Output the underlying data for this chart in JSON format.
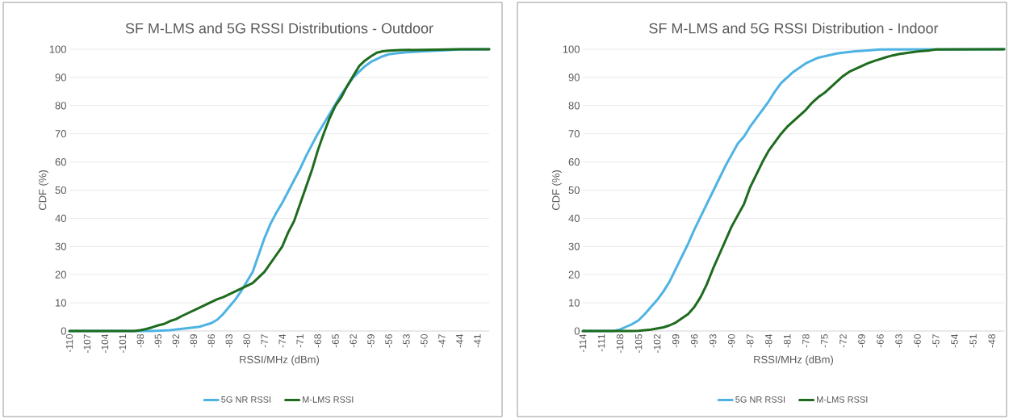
{
  "chart_data": [
    {
      "type": "line",
      "title": "SF M-LMS and 5G RSSI Distributions - Outdoor",
      "xlabel": "RSSI/MHz (dBm)",
      "ylabel": "CDF (%)",
      "xlim": [
        -110,
        -39
      ],
      "xticks": [
        -110,
        -107,
        -104,
        -101,
        -98,
        -95,
        -92,
        -89,
        -86,
        -83,
        -80,
        -77,
        -74,
        -71,
        -68,
        -65,
        -62,
        -59,
        -56,
        -53,
        -50,
        -47,
        -44,
        -41
      ],
      "ylim": [
        0,
        100
      ],
      "yticks": [
        0,
        10,
        20,
        30,
        40,
        50,
        60,
        70,
        80,
        90,
        100
      ],
      "grid": "y",
      "legend": "bottom",
      "series": [
        {
          "name": "5G NR RSSI",
          "color": "#4eb3e3",
          "x": [
            -110,
            -96,
            -93,
            -90,
            -88,
            -86,
            -85,
            -84,
            -83,
            -82,
            -81,
            -80,
            -79,
            -78,
            -77,
            -76,
            -75,
            -74,
            -73,
            -72,
            -71,
            -70,
            -69,
            -68,
            -67,
            -66,
            -65,
            -64,
            -63,
            -62,
            -61,
            -60,
            -59,
            -58,
            -57,
            -56,
            -55,
            -53,
            -50,
            -47,
            -44,
            -39
          ],
          "values": [
            0,
            0,
            0.3,
            1,
            1.5,
            2.8,
            4,
            6,
            8.5,
            11,
            14,
            17.5,
            21,
            27,
            33,
            38,
            42,
            45.5,
            49.5,
            53.5,
            57.5,
            62,
            66,
            70,
            73.5,
            77,
            80.5,
            84,
            87,
            90,
            92,
            94,
            95.5,
            96.5,
            97.5,
            98.2,
            98.5,
            98.9,
            99.3,
            99.6,
            99.9,
            100
          ]
        },
        {
          "name": "M-LMS RSSI",
          "color": "#1e6b1e",
          "x": [
            -110,
            -99,
            -98,
            -97,
            -96,
            -95,
            -94,
            -93,
            -92,
            -91,
            -90,
            -89,
            -88,
            -87,
            -86,
            -85,
            -84,
            -83,
            -82,
            -81,
            -80,
            -79,
            -78,
            -77,
            -76,
            -75,
            -74,
            -73,
            -72,
            -71,
            -70,
            -69,
            -68,
            -67,
            -66,
            -65,
            -64,
            -63,
            -62,
            -61,
            -60,
            -59,
            -58,
            -57,
            -56,
            -54,
            -50,
            -44,
            -39
          ],
          "values": [
            0,
            0,
            0.3,
            0.7,
            1.3,
            2,
            2.5,
            3.5,
            4.2,
            5.3,
            6.3,
            7.3,
            8.3,
            9.3,
            10.3,
            11.3,
            12,
            13,
            14,
            15,
            16,
            17,
            19,
            21,
            24,
            27,
            30,
            35,
            39,
            45,
            51,
            57,
            64,
            70,
            75.5,
            80,
            83,
            87,
            90.5,
            94,
            96,
            97.5,
            98.8,
            99.3,
            99.5,
            99.7,
            99.8,
            100,
            100
          ]
        }
      ]
    },
    {
      "type": "line",
      "title": "SF M-LMS and 5G RSSI Distribution - Indoor",
      "xlabel": "RSSI/MHz (dBm)",
      "ylabel": "CDF (%)",
      "xlim": [
        -114,
        -46
      ],
      "xticks": [
        -114,
        -111,
        -108,
        -105,
        -102,
        -99,
        -96,
        -93,
        -90,
        -87,
        -84,
        -81,
        -78,
        -75,
        -72,
        -69,
        -66,
        -63,
        -60,
        -57,
        -54,
        -51,
        -48
      ],
      "ylim": [
        0,
        100
      ],
      "yticks": [
        0,
        10,
        20,
        30,
        40,
        50,
        60,
        70,
        80,
        90,
        100
      ],
      "grid": "y",
      "legend": "bottom",
      "series": [
        {
          "name": "5G NR RSSI",
          "color": "#4eb3e3",
          "x": [
            -114,
            -109,
            -108,
            -107,
            -106,
            -105,
            -104,
            -103,
            -102,
            -101,
            -100,
            -99,
            -98,
            -97,
            -96,
            -95,
            -94,
            -93,
            -92,
            -91,
            -90,
            -89,
            -88,
            -87,
            -86,
            -85,
            -84,
            -83,
            -82,
            -81,
            -80,
            -79,
            -78,
            -77,
            -76,
            -75,
            -74,
            -73,
            -72,
            -70,
            -68,
            -66,
            -46
          ],
          "values": [
            0,
            0,
            0.5,
            1.5,
            2.5,
            3.8,
            6,
            8.5,
            11,
            14,
            17.5,
            22,
            26.5,
            31,
            36,
            40.5,
            45,
            49.5,
            54,
            58.5,
            62.5,
            66.5,
            69,
            72.5,
            75.5,
            78.5,
            81.5,
            85,
            88,
            90,
            92,
            93.5,
            95,
            96,
            97,
            97.5,
            98,
            98.5,
            98.8,
            99.3,
            99.6,
            99.9,
            100
          ]
        },
        {
          "name": "M-LMS RSSI",
          "color": "#1e6b1e",
          "x": [
            -114,
            -106,
            -105,
            -104,
            -103,
            -102,
            -101,
            -100,
            -99,
            -98,
            -97,
            -96,
            -95,
            -94,
            -93,
            -92,
            -91,
            -90,
            -89,
            -88,
            -87,
            -86,
            -85,
            -84,
            -83,
            -82,
            -81,
            -80,
            -79,
            -78,
            -77,
            -76,
            -75,
            -74,
            -73,
            -72,
            -71,
            -70,
            -69,
            -68,
            -67,
            -66,
            -65,
            -64,
            -63,
            -62,
            -61,
            -60,
            -58,
            -57,
            -46
          ],
          "values": [
            0,
            0,
            0.1,
            0.3,
            0.5,
            0.9,
            1.3,
            2,
            3,
            4.5,
            6,
            8.5,
            12,
            16.5,
            22,
            27,
            32,
            37,
            41,
            45,
            51,
            55.5,
            60,
            64,
            67,
            70,
            72.5,
            74.5,
            76.5,
            78.5,
            81,
            83,
            84.5,
            86.5,
            88.5,
            90.5,
            92,
            93,
            94,
            95,
            95.8,
            96.5,
            97.2,
            97.8,
            98.3,
            98.6,
            98.9,
            99.2,
            99.6,
            99.9,
            100
          ]
        }
      ]
    }
  ]
}
